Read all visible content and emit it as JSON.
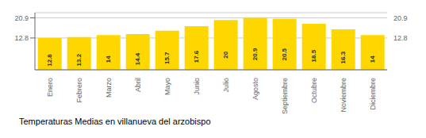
{
  "chart_data": {
    "type": "bar",
    "title": "Temperaturas Medias en villanueva del arzobispo",
    "categories": [
      "Enero",
      "Febrero",
      "Marzo",
      "Abril",
      "Mayo",
      "Junio",
      "Julio",
      "Agosto",
      "Septiembre",
      "Octubre",
      "Noviembre",
      "Diciembre"
    ],
    "values": [
      12.8,
      13.2,
      14.0,
      14.4,
      15.7,
      17.6,
      20.0,
      20.9,
      20.5,
      18.5,
      16.3,
      14.0
    ],
    "color": "#FFD700",
    "ylim": [
      0,
      22.99
    ],
    "yticks": [
      12.8,
      20.9
    ],
    "y2lim": [
      0,
      22.99
    ],
    "y2ticks": [
      12.8,
      20.9
    ],
    "grid": true,
    "data_labels": true
  }
}
